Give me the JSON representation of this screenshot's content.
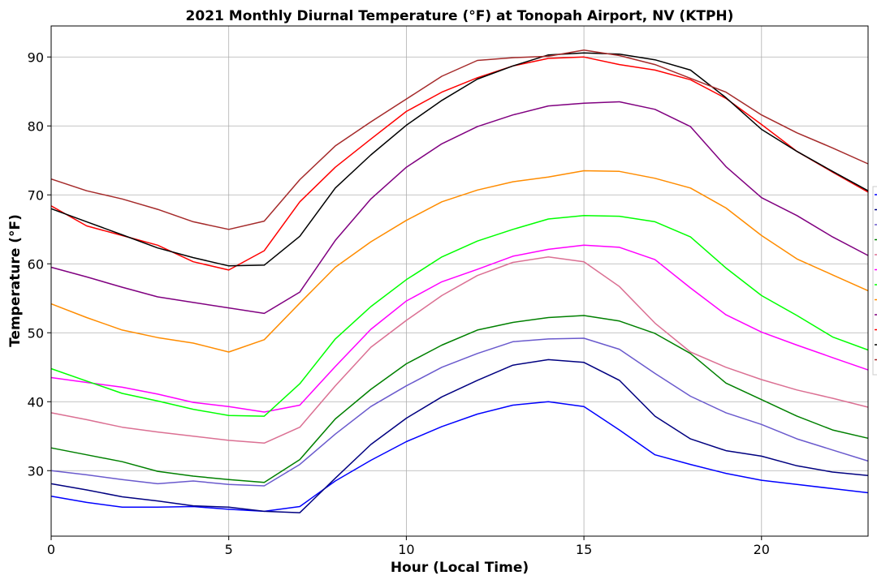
{
  "chart_data": {
    "type": "line",
    "title": "2021 Monthly Diurnal Temperature (°F) at Tonopah Airport, NV (KTPH)",
    "xlabel": "Hour (Local Time)",
    "ylabel": "Temperature (°F)",
    "xlim": [
      0,
      23
    ],
    "ylim": [
      20.5,
      94.5
    ],
    "xticks": [
      0,
      5,
      10,
      15,
      20
    ],
    "yticks": [
      30,
      40,
      50,
      60,
      70,
      80,
      90
    ],
    "grid": true,
    "legend_position": "right, partially cut off",
    "x": [
      0,
      1,
      2,
      3,
      4,
      5,
      6,
      7,
      8,
      9,
      10,
      11,
      12,
      13,
      14,
      15,
      16,
      17,
      18,
      19,
      20,
      21,
      22,
      23
    ],
    "series": [
      {
        "color": "#0000ff",
        "values": [
          26.3,
          25.4,
          24.7,
          24.7,
          24.8,
          24.4,
          24.1,
          24.8,
          28.5,
          31.5,
          34.2,
          36.4,
          38.2,
          39.5,
          40.0,
          39.3,
          35.9,
          32.3,
          30.9,
          29.6,
          28.6,
          28.0,
          27.4,
          26.8
        ]
      },
      {
        "color": "#000080",
        "values": [
          28.1,
          27.2,
          26.2,
          25.6,
          24.9,
          24.7,
          24.1,
          23.9,
          28.9,
          33.8,
          37.6,
          40.7,
          43.1,
          45.3,
          46.1,
          45.7,
          43.1,
          37.9,
          34.6,
          32.9,
          32.1,
          30.7,
          29.8,
          29.3
        ]
      },
      {
        "color": "#6a5acd",
        "values": [
          30.0,
          29.4,
          28.7,
          28.1,
          28.5,
          28.0,
          27.8,
          30.9,
          35.3,
          39.3,
          42.3,
          45.0,
          47.0,
          48.7,
          49.1,
          49.2,
          47.6,
          44.1,
          40.8,
          38.4,
          36.7,
          34.6,
          33.0,
          31.4
        ]
      },
      {
        "color": "#008000",
        "values": [
          33.3,
          32.3,
          31.3,
          29.9,
          29.2,
          28.7,
          28.3,
          31.6,
          37.5,
          41.8,
          45.5,
          48.2,
          50.4,
          51.5,
          52.2,
          52.5,
          51.7,
          49.9,
          47.0,
          42.7,
          40.3,
          37.9,
          35.9,
          34.7
        ]
      },
      {
        "color": "#db7093",
        "values": [
          38.4,
          37.4,
          36.3,
          35.6,
          35.0,
          34.4,
          34.0,
          36.3,
          42.3,
          47.9,
          51.8,
          55.4,
          58.3,
          60.2,
          61.0,
          60.3,
          56.7,
          51.4,
          47.2,
          45.0,
          43.2,
          41.7,
          40.5,
          39.2
        ]
      },
      {
        "color": "#ff00ff",
        "values": [
          43.5,
          42.8,
          42.1,
          41.1,
          39.9,
          39.3,
          38.5,
          39.5,
          45.1,
          50.5,
          54.6,
          57.4,
          59.2,
          61.1,
          62.1,
          62.7,
          62.4,
          60.6,
          56.5,
          52.6,
          50.1,
          48.2,
          46.4,
          44.6
        ]
      },
      {
        "color": "#00ff00",
        "values": [
          44.8,
          43.0,
          41.2,
          40.1,
          38.9,
          38.0,
          37.9,
          42.6,
          49.1,
          53.8,
          57.7,
          61.0,
          63.3,
          65.0,
          66.5,
          67.0,
          66.9,
          66.1,
          63.9,
          59.4,
          55.4,
          52.5,
          49.4,
          47.5
        ]
      },
      {
        "color": "#ff8c00",
        "values": [
          54.2,
          52.2,
          50.4,
          49.3,
          48.5,
          47.2,
          49.0,
          54.3,
          59.5,
          63.2,
          66.3,
          69.0,
          70.7,
          71.9,
          72.6,
          73.5,
          73.4,
          72.4,
          71.0,
          68.1,
          64.1,
          60.7,
          58.4,
          56.1
        ]
      },
      {
        "color": "#800080",
        "values": [
          59.5,
          58.1,
          56.6,
          55.2,
          54.4,
          53.6,
          52.8,
          55.9,
          63.4,
          69.4,
          74.0,
          77.4,
          79.9,
          81.6,
          82.9,
          83.3,
          83.5,
          82.4,
          79.9,
          74.1,
          69.6,
          67.0,
          63.9,
          61.2
        ]
      },
      {
        "color": "#ff0000",
        "values": [
          68.4,
          65.5,
          64.1,
          62.7,
          60.3,
          59.1,
          61.9,
          69.0,
          74.0,
          78.1,
          82.1,
          84.9,
          87.0,
          88.7,
          89.8,
          90.0,
          88.9,
          88.1,
          86.7,
          84.0,
          80.2,
          76.3,
          73.3,
          70.4
        ]
      },
      {
        "color": "#000000",
        "values": [
          68.0,
          66.1,
          64.2,
          62.3,
          60.9,
          59.7,
          59.8,
          64.0,
          71.0,
          75.8,
          80.1,
          83.7,
          86.8,
          88.7,
          90.3,
          90.6,
          90.4,
          89.6,
          88.1,
          84.1,
          79.5,
          76.3,
          73.4,
          70.6
        ]
      },
      {
        "color": "#a52a2a",
        "values": [
          72.3,
          70.6,
          69.4,
          67.9,
          66.1,
          65.0,
          66.2,
          72.2,
          77.1,
          80.6,
          83.9,
          87.2,
          89.5,
          89.9,
          90.1,
          91.0,
          90.2,
          88.9,
          86.9,
          84.9,
          81.6,
          79.0,
          76.8,
          74.5
        ]
      }
    ]
  }
}
